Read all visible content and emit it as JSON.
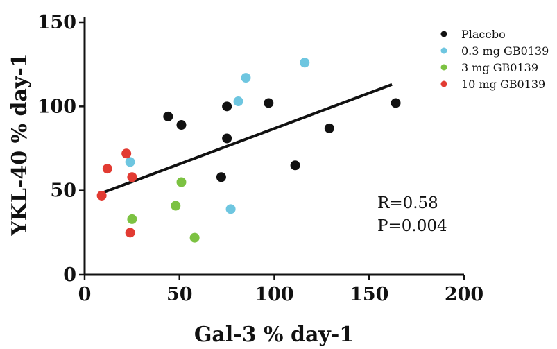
{
  "chart_data": {
    "type": "scatter",
    "xlabel": "Gal-3 % day-1",
    "ylabel": "YKL-40 % day-1",
    "xlim": [
      0,
      200
    ],
    "ylim": [
      0,
      150
    ],
    "x_ticks": [
      "0",
      "50",
      "100",
      "150",
      "200"
    ],
    "y_ticks": [
      "0",
      "50",
      "100",
      "150"
    ],
    "grid": false,
    "legend_position": "top-right",
    "series": [
      {
        "name": "Placebo",
        "color": "#111111",
        "points": [
          {
            "x": 44,
            "y": 94
          },
          {
            "x": 51,
            "y": 89
          },
          {
            "x": 75,
            "y": 100
          },
          {
            "x": 75,
            "y": 81
          },
          {
            "x": 72,
            "y": 58
          },
          {
            "x": 97,
            "y": 102
          },
          {
            "x": 111,
            "y": 65
          },
          {
            "x": 129,
            "y": 87
          },
          {
            "x": 164,
            "y": 102
          }
        ]
      },
      {
        "name": "0.3 mg GB0139",
        "color": "#6ec6e0",
        "points": [
          {
            "x": 85,
            "y": 117
          },
          {
            "x": 116,
            "y": 126
          },
          {
            "x": 81,
            "y": 103
          },
          {
            "x": 24,
            "y": 67
          },
          {
            "x": 77,
            "y": 39
          }
        ]
      },
      {
        "name": "3 mg GB0139",
        "color": "#7cc242",
        "points": [
          {
            "x": 51,
            "y": 55
          },
          {
            "x": 48,
            "y": 41
          },
          {
            "x": 25,
            "y": 33
          },
          {
            "x": 58,
            "y": 22
          }
        ]
      },
      {
        "name": "10 mg GB0139",
        "color": "#e23b32",
        "points": [
          {
            "x": 22,
            "y": 72
          },
          {
            "x": 12,
            "y": 63
          },
          {
            "x": 25,
            "y": 58
          },
          {
            "x": 9,
            "y": 47
          },
          {
            "x": 24,
            "y": 25
          }
        ]
      }
    ],
    "regression_line": {
      "x": [
        9,
        162
      ],
      "y": [
        48.5,
        113
      ]
    },
    "annotations": {
      "r": "R=0.58",
      "p": "P=0.004"
    }
  }
}
